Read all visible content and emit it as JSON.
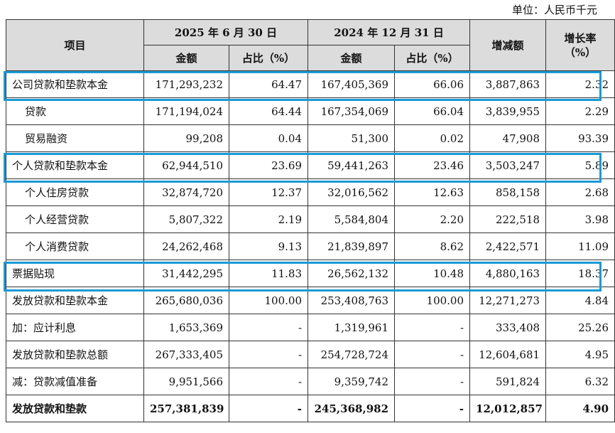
{
  "unit_note": "单位：人民币千元",
  "header": {
    "item": "项目",
    "period1": "2025 年 6 月 30 日",
    "period2": "2024 年 12 月 31 日",
    "change": "增减额",
    "growth": "增长率（%）",
    "amount": "金额",
    "share": "占比（%）"
  },
  "rows": [
    {
      "label": "公司贷款和垫款本金",
      "a1": "171,293,232",
      "s1": "64.47",
      "a2": "167,405,369",
      "s2": "66.06",
      "chg": "3,887,863",
      "gr": "2.32"
    },
    {
      "label": "贷款",
      "a1": "171,194,024",
      "s1": "64.44",
      "a2": "167,354,069",
      "s2": "66.04",
      "chg": "3,839,955",
      "gr": "2.29"
    },
    {
      "label": "贸易融资",
      "a1": "99,208",
      "s1": "0.04",
      "a2": "51,300",
      "s2": "0.02",
      "chg": "47,908",
      "gr": "93.39"
    },
    {
      "label": "个人贷款和垫款本金",
      "a1": "62,944,510",
      "s1": "23.69",
      "a2": "59,441,263",
      "s2": "23.46",
      "chg": "3,503,247",
      "gr": "5.89"
    },
    {
      "label": "个人住房贷款",
      "a1": "32,874,720",
      "s1": "12.37",
      "a2": "32,016,562",
      "s2": "12.63",
      "chg": "858,158",
      "gr": "2.68"
    },
    {
      "label": "个人经营贷款",
      "a1": "5,807,322",
      "s1": "2.19",
      "a2": "5,584,804",
      "s2": "2.20",
      "chg": "222,518",
      "gr": "3.98"
    },
    {
      "label": "个人消费贷款",
      "a1": "24,262,468",
      "s1": "9.13",
      "a2": "21,839,897",
      "s2": "8.62",
      "chg": "2,422,571",
      "gr": "11.09"
    },
    {
      "label": "票据贴现",
      "a1": "31,442,295",
      "s1": "11.83",
      "a2": "26,562,132",
      "s2": "10.48",
      "chg": "4,880,163",
      "gr": "18.37"
    },
    {
      "label": "发放贷款和垫款本金",
      "a1": "265,680,036",
      "s1": "100.00",
      "a2": "253,408,763",
      "s2": "100.00",
      "chg": "12,271,273",
      "gr": "4.84"
    },
    {
      "label": "加：应计利息",
      "a1": "1,653,369",
      "s1": "-",
      "a2": "1,319,961",
      "s2": "-",
      "chg": "333,408",
      "gr": "25.26"
    },
    {
      "label": "发放贷款和垫款总额",
      "a1": "267,333,405",
      "s1": "-",
      "a2": "254,728,724",
      "s2": "-",
      "chg": "12,604,681",
      "gr": "4.95"
    },
    {
      "label": "减：贷款减值准备",
      "a1": "9,951,566",
      "s1": "-",
      "a2": "9,359,742",
      "s2": "-",
      "chg": "591,824",
      "gr": "6.32"
    },
    {
      "label": "发放贷款和垫款",
      "a1": "257,381,839",
      "s1": "-",
      "a2": "245,368,982",
      "s2": "-",
      "chg": "12,012,857",
      "gr": "4.90"
    }
  ],
  "highlight_color": "#1a9ad6"
}
